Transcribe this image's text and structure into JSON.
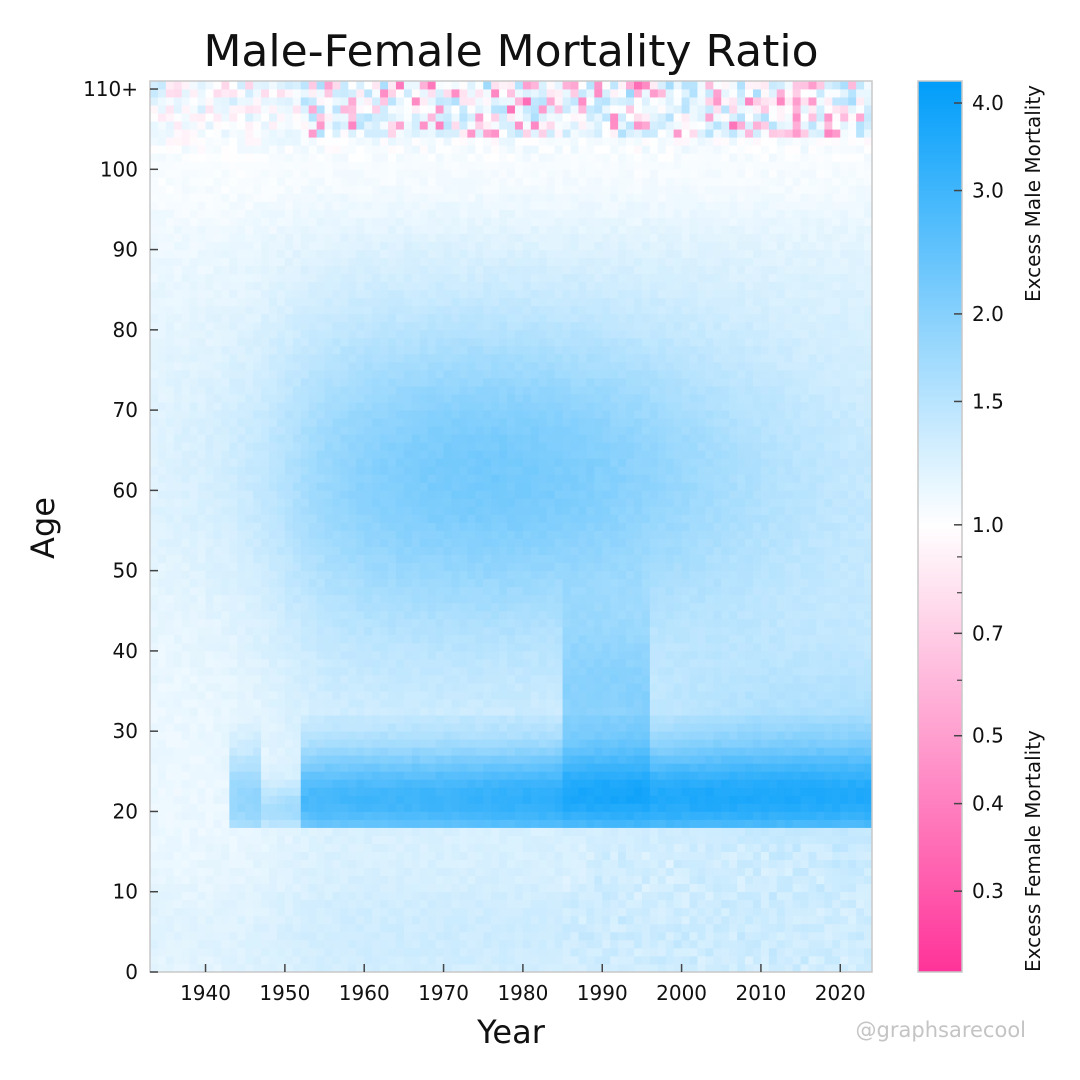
{
  "chart_data": {
    "type": "heatmap",
    "title": "Male-Female Mortality Ratio",
    "xlabel": "Year",
    "ylabel": "Age",
    "x_range": [
      1933,
      2024
    ],
    "y_range": [
      0,
      111
    ],
    "x_ticks": [
      {
        "value": 1940,
        "label": "1940"
      },
      {
        "value": 1950,
        "label": "1950"
      },
      {
        "value": 1960,
        "label": "1960"
      },
      {
        "value": 1970,
        "label": "1970"
      },
      {
        "value": 1980,
        "label": "1980"
      },
      {
        "value": 1990,
        "label": "1990"
      },
      {
        "value": 2000,
        "label": "2000"
      },
      {
        "value": 2010,
        "label": "2010"
      },
      {
        "value": 2020,
        "label": "2020"
      }
    ],
    "y_ticks": [
      {
        "value": 0,
        "label": "0"
      },
      {
        "value": 10,
        "label": "10"
      },
      {
        "value": 20,
        "label": "20"
      },
      {
        "value": 30,
        "label": "30"
      },
      {
        "value": 40,
        "label": "40"
      },
      {
        "value": 50,
        "label": "50"
      },
      {
        "value": 60,
        "label": "60"
      },
      {
        "value": 70,
        "label": "70"
      },
      {
        "value": 80,
        "label": "80"
      },
      {
        "value": 90,
        "label": "90"
      },
      {
        "value": 100,
        "label": "100"
      },
      {
        "value": 110,
        "label": "110+"
      }
    ],
    "colorbar": {
      "scale": "log",
      "range": [
        0.23,
        4.3
      ],
      "center": 1.0,
      "ticks": [
        {
          "value": 4.0,
          "label": "4.0"
        },
        {
          "value": 3.0,
          "label": "3.0"
        },
        {
          "value": 2.0,
          "label": "2.0"
        },
        {
          "value": 1.5,
          "label": "1.5"
        },
        {
          "value": 1.0,
          "label": "1.0"
        },
        {
          "value": 0.7,
          "label": "0.7"
        },
        {
          "value": 0.5,
          "label": "0.5"
        },
        {
          "value": 0.4,
          "label": "0.4"
        },
        {
          "value": 0.3,
          "label": "0.3"
        }
      ],
      "minor_ticks": [
        0.9,
        0.8,
        0.6
      ],
      "upper_label": "Excess Male Mortality",
      "lower_label": "Excess Female Mortality",
      "colors": {
        "high": "#009dfa",
        "mid": "#ffffff",
        "low": "#ff3399"
      }
    },
    "ratio_model": {
      "description_of_regions": [
        {
          "region": "young adult band",
          "ages": [
            18,
            30
          ],
          "years": [
            1943,
            2024
          ],
          "ratio": 3.0
        },
        {
          "region": "ages 30-45 bulge",
          "ages": [
            30,
            45
          ],
          "years": [
            1985,
            1996
          ],
          "ratio": 2.4
        },
        {
          "region": "middle age hump",
          "ages": [
            50,
            75
          ],
          "years": [
            1955,
            2000
          ],
          "ratio": 1.9
        },
        {
          "region": "childhood",
          "ages": [
            0,
            15
          ],
          "years": [
            1933,
            2024
          ],
          "ratio": 1.25
        },
        {
          "region": "very old",
          "ages": [
            100,
            111
          ],
          "years": [
            1933,
            2024
          ],
          "ratio": 1.0
        }
      ]
    }
  },
  "watermark": "@graphsarecool"
}
